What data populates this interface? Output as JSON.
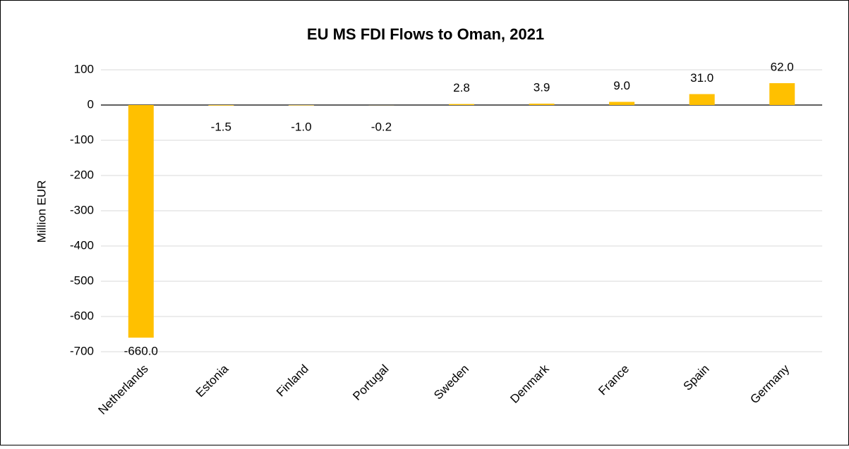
{
  "chart_data": {
    "type": "bar",
    "title": "EU MS FDI Flows to Oman, 2021",
    "y_label": "Million EUR",
    "categories": [
      "Netherlands",
      "Estonia",
      "Finland",
      "Portugal",
      "Sweden",
      "Denmark",
      "France",
      "Spain",
      "Germany"
    ],
    "values": [
      -660,
      -1.5,
      -1.0,
      -0.2,
      2.8,
      3.9,
      9.0,
      31.0,
      62.0
    ],
    "value_labels": [
      "-660.0",
      "-1.5",
      "-1.0",
      "-0.2",
      "2.8",
      "3.9",
      "9.0",
      "31.0",
      "62.0"
    ],
    "color": "#ffc000",
    "ylim": [
      -700,
      100
    ],
    "yticks": [
      100,
      0,
      -100,
      -200,
      -300,
      -400,
      -500,
      -600,
      -700
    ],
    "grid": true
  }
}
